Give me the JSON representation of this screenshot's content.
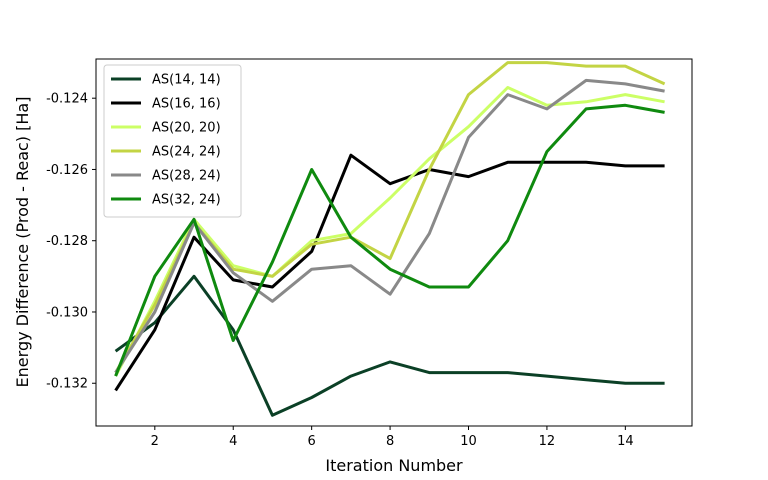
{
  "chart_data": {
    "type": "line",
    "title": "",
    "xlabel": "Iteration Number",
    "ylabel": "Energy Difference (Prod - Reac) [Ha]",
    "xlim": [
      0.5,
      15.7
    ],
    "ylim": [
      -0.1332,
      -0.1229
    ],
    "x_ticks": [
      2,
      4,
      6,
      8,
      10,
      12,
      14
    ],
    "x_tick_labels": [
      "2",
      "4",
      "6",
      "8",
      "10",
      "12",
      "14"
    ],
    "y_ticks": [
      -0.132,
      -0.13,
      -0.128,
      -0.126,
      -0.124
    ],
    "y_tick_labels": [
      "-0.132",
      "-0.130",
      "-0.128",
      "-0.126",
      "-0.124"
    ],
    "grid": false,
    "legend_position": "top-left",
    "x": [
      1,
      2,
      3,
      4,
      5,
      6,
      7,
      8,
      9,
      10,
      11,
      12,
      13,
      14,
      15
    ],
    "series": [
      {
        "name": "AS(14, 14)",
        "color": "#0b4026",
        "values": [
          -0.1311,
          -0.1303,
          -0.129,
          -0.1305,
          -0.1329,
          -0.1324,
          -0.1318,
          -0.1314,
          -0.1317,
          -0.1317,
          -0.1317,
          -0.1318,
          -0.1319,
          -0.132,
          -0.132
        ]
      },
      {
        "name": "AS(16, 16)",
        "color": "#000000",
        "values": [
          -0.1322,
          -0.1305,
          -0.1279,
          -0.1291,
          -0.1293,
          -0.1283,
          -0.1256,
          -0.1264,
          -0.126,
          -0.1262,
          -0.1258,
          -0.1258,
          -0.1258,
          -0.1259,
          -0.1259
        ]
      },
      {
        "name": "AS(20, 20)",
        "color": "#ccff66",
        "values": [
          -0.1318,
          -0.1297,
          -0.1274,
          -0.1287,
          -0.129,
          -0.128,
          -0.1278,
          -0.1268,
          -0.1257,
          -0.1248,
          -0.1237,
          -0.1242,
          -0.1241,
          -0.1239,
          -0.1241
        ]
      },
      {
        "name": "AS(24, 24)",
        "color": "#c3d444",
        "values": [
          -0.1317,
          -0.1298,
          -0.1275,
          -0.1288,
          -0.129,
          -0.1281,
          -0.1279,
          -0.1285,
          -0.126,
          -0.1239,
          -0.123,
          -0.123,
          -0.1231,
          -0.1231,
          -0.1236
        ]
      },
      {
        "name": "AS(28, 24)",
        "color": "#898989",
        "values": [
          -0.1317,
          -0.13,
          -0.1275,
          -0.1289,
          -0.1297,
          -0.1288,
          -0.1287,
          -0.1295,
          -0.1278,
          -0.1251,
          -0.1239,
          -0.1243,
          -0.1235,
          -0.1236,
          -0.1238
        ]
      },
      {
        "name": "AS(32, 24)",
        "color": "#0f8a0f",
        "values": [
          -0.1318,
          -0.129,
          -0.1274,
          -0.1308,
          -0.1286,
          -0.126,
          -0.1279,
          -0.1288,
          -0.1293,
          -0.1293,
          -0.128,
          -0.1255,
          -0.1243,
          -0.1242,
          -0.1244
        ]
      }
    ]
  }
}
